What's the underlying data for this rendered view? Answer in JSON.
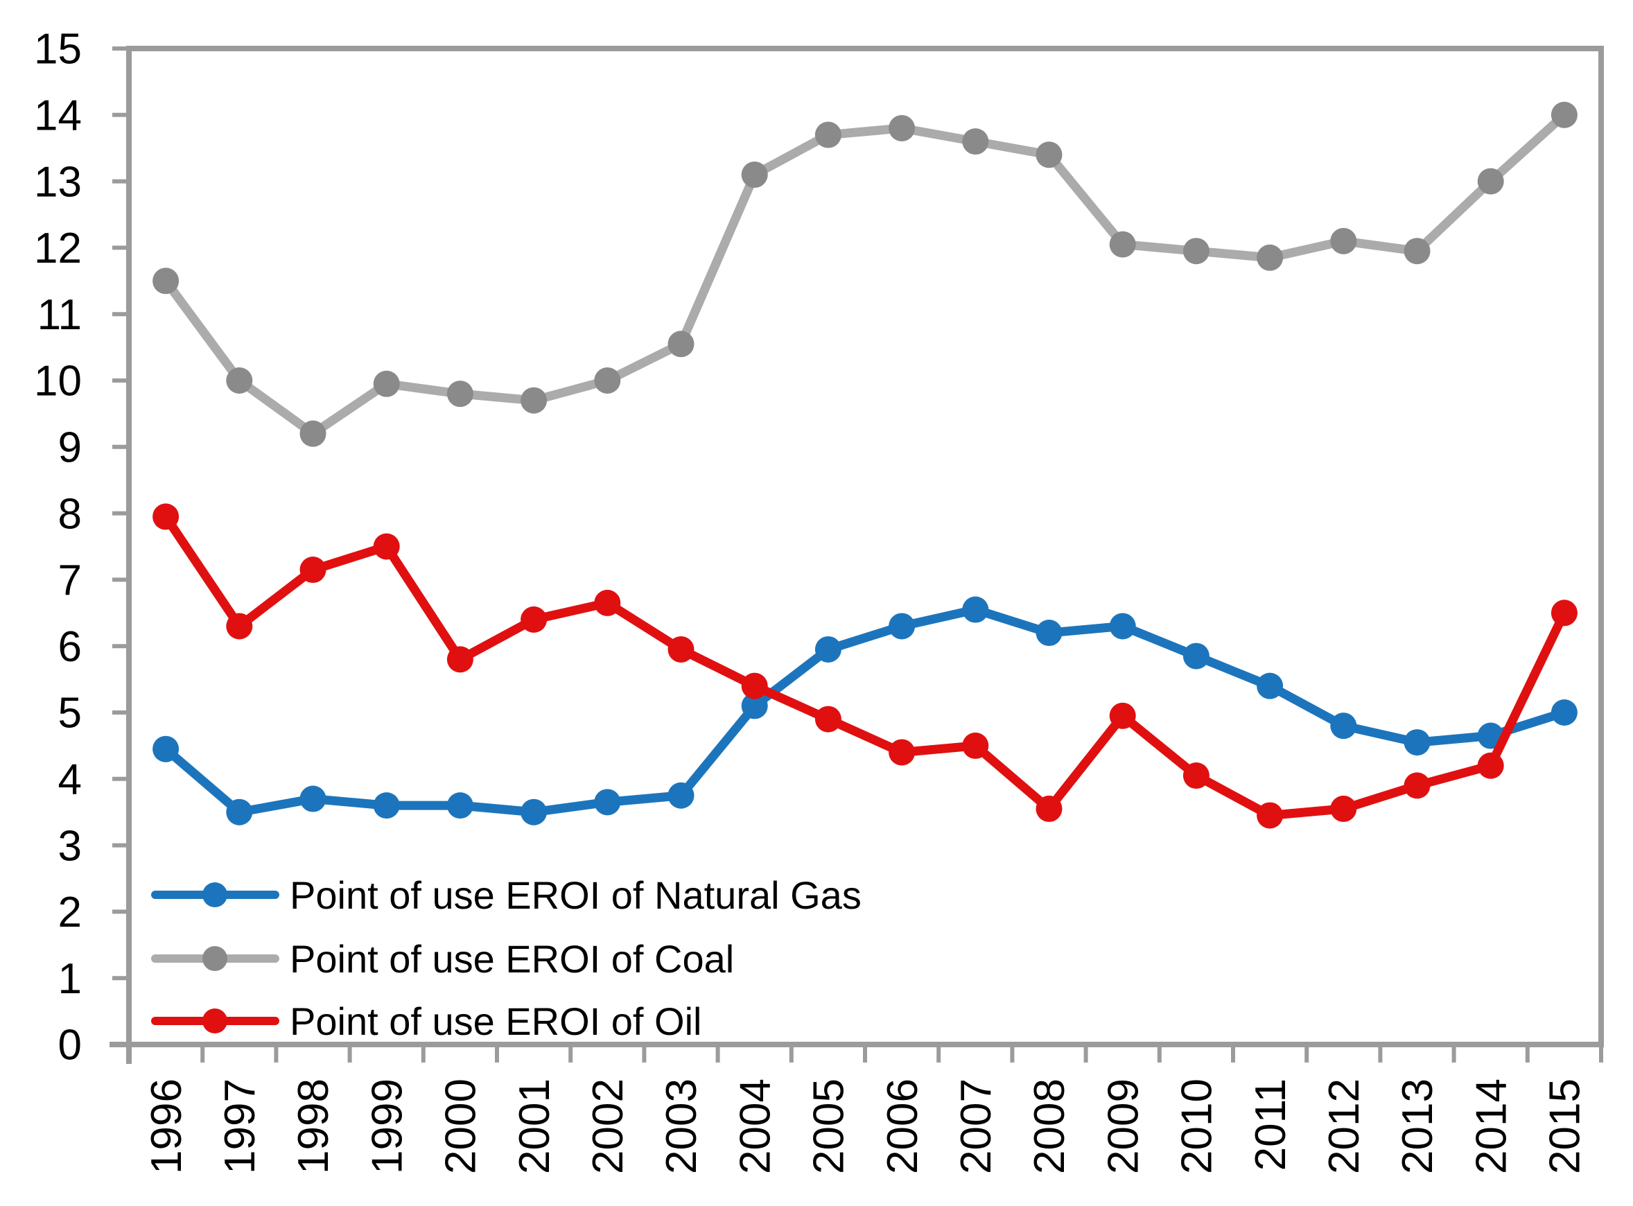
{
  "chart_data": {
    "type": "line",
    "title": "",
    "xlabel": "",
    "ylabel": "",
    "x_categories": [
      "1996",
      "1997",
      "1998",
      "1999",
      "2000",
      "2001",
      "2002",
      "2003",
      "2004",
      "2005",
      "2006",
      "2007",
      "2008",
      "2009",
      "2010",
      "2011",
      "2012",
      "2013",
      "2014",
      "2015"
    ],
    "series": [
      {
        "name": "Point of use EROI of Natural Gas",
        "color": "#1c75bc",
        "values": [
          4.45,
          3.5,
          3.7,
          3.6,
          3.6,
          3.5,
          3.65,
          3.75,
          5.1,
          5.95,
          6.3,
          6.55,
          6.2,
          6.3,
          5.85,
          5.4,
          4.8,
          4.55,
          4.65,
          5.0
        ]
      },
      {
        "name": "Point of use EROI of Coal",
        "color": "#ababab",
        "marker_color": "#8a8a8a",
        "values": [
          11.5,
          10.0,
          9.2,
          9.95,
          9.8,
          9.7,
          10.0,
          10.55,
          13.1,
          13.7,
          13.8,
          13.6,
          13.4,
          12.05,
          11.95,
          11.85,
          12.1,
          11.95,
          13.0,
          14.0
        ]
      },
      {
        "name": "Point of use EROI of Oil",
        "color": "#e01010",
        "values": [
          7.95,
          6.3,
          7.15,
          7.5,
          5.8,
          6.4,
          6.65,
          5.95,
          5.4,
          4.9,
          4.4,
          4.5,
          3.55,
          4.95,
          4.05,
          3.45,
          3.55,
          3.9,
          4.2,
          6.5
        ]
      }
    ],
    "ylim": [
      0,
      15
    ],
    "ytick_step": 1,
    "grid": false,
    "legend_position": "lower-left",
    "axis_color": "#9b9b9b",
    "text_color": "#000000"
  }
}
